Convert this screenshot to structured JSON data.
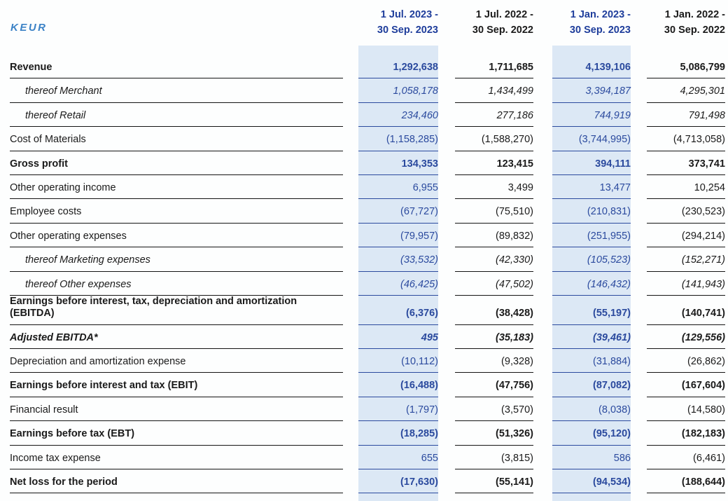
{
  "unit_label": "KEUR",
  "columns": [
    {
      "label_line1": "1 Jul. 2023 -",
      "label_line2": "30 Sep. 2023",
      "highlighted": true
    },
    {
      "label_line1": "1 Jul. 2022 -",
      "label_line2": "30 Sep. 2022",
      "highlighted": false
    },
    {
      "label_line1": "1 Jan. 2023 -",
      "label_line2": "30 Sep. 2023",
      "highlighted": true
    },
    {
      "label_line1": "1 Jan. 2022 -",
      "label_line2": "30 Sep. 2022",
      "highlighted": false
    }
  ],
  "rows": [
    {
      "label": "Revenue",
      "style": "bold",
      "values": [
        "1,292,638",
        "1,711,685",
        "4,139,106",
        "5,086,799"
      ]
    },
    {
      "label": "thereof Merchant",
      "style": "thereof",
      "values": [
        "1,058,178",
        "1,434,499",
        "3,394,187",
        "4,295,301"
      ]
    },
    {
      "label": "thereof Retail",
      "style": "thereof",
      "values": [
        "234,460",
        "277,186",
        "744,919",
        "791,498"
      ]
    },
    {
      "label": "Cost of Materials",
      "style": "regular",
      "values": [
        "(1,158,285)",
        "(1,588,270)",
        "(3,744,995)",
        "(4,713,058)"
      ]
    },
    {
      "label": "Gross profit",
      "style": "bold",
      "values": [
        "134,353",
        "123,415",
        "394,111",
        "373,741"
      ]
    },
    {
      "label": "Other operating income",
      "style": "regular",
      "values": [
        "6,955",
        "3,499",
        "13,477",
        "10,254"
      ]
    },
    {
      "label": "Employee costs",
      "style": "regular",
      "values": [
        "(67,727)",
        "(75,510)",
        "(210,831)",
        "(230,523)"
      ]
    },
    {
      "label": "Other operating expenses",
      "style": "regular",
      "values": [
        "(79,957)",
        "(89,832)",
        "(251,955)",
        "(294,214)"
      ]
    },
    {
      "label": "thereof Marketing expenses",
      "style": "thereof",
      "values": [
        "(33,532)",
        "(42,330)",
        "(105,523)",
        "(152,271)"
      ]
    },
    {
      "label": "thereof Other expenses",
      "style": "thereof",
      "values": [
        "(46,425)",
        "(47,502)",
        "(146,432)",
        "(141,943)"
      ]
    },
    {
      "label": "Earnings before interest, tax, depreciation and amortization (EBITDA)",
      "style": "bold",
      "values": [
        "(6,376)",
        "(38,428)",
        "(55,197)",
        "(140,741)"
      ]
    },
    {
      "label": "Adjusted EBITDA*",
      "style": "bold-italic",
      "values": [
        "495",
        "(35,183)",
        "(39,461)",
        "(129,556)"
      ]
    },
    {
      "label": "Depreciation and amortization expense",
      "style": "regular",
      "values": [
        "(10,112)",
        "(9,328)",
        "(31,884)",
        "(26,862)"
      ]
    },
    {
      "label": "Earnings before interest and tax (EBIT)",
      "style": "bold",
      "values": [
        "(16,488)",
        "(47,756)",
        "(87,082)",
        "(167,604)"
      ]
    },
    {
      "label": "Financial result",
      "style": "regular",
      "values": [
        "(1,797)",
        "(3,570)",
        "(8,038)",
        "(14,580)"
      ]
    },
    {
      "label": "Earnings before tax (EBT)",
      "style": "bold",
      "values": [
        "(18,285)",
        "(51,326)",
        "(95,120)",
        "(182,183)"
      ]
    },
    {
      "label": "Income tax expense",
      "style": "regular",
      "values": [
        "655",
        "(3,815)",
        "586",
        "(6,461)"
      ]
    },
    {
      "label": "Net loss for the period",
      "style": "bold",
      "values": [
        "(17,630)",
        "(55,141)",
        "(94,534)",
        "(188,644)"
      ]
    }
  ],
  "colors": {
    "highlight_background": "#dce8f5",
    "highlight_text": "#2b4a9e",
    "highlight_border": "#2b4a9e",
    "header_highlight_text": "#1e3d9b",
    "unit_label_text": "#3b82c6",
    "default_text": "#1a1a1a",
    "default_border": "#141414",
    "page_background": "#fdfefe"
  }
}
